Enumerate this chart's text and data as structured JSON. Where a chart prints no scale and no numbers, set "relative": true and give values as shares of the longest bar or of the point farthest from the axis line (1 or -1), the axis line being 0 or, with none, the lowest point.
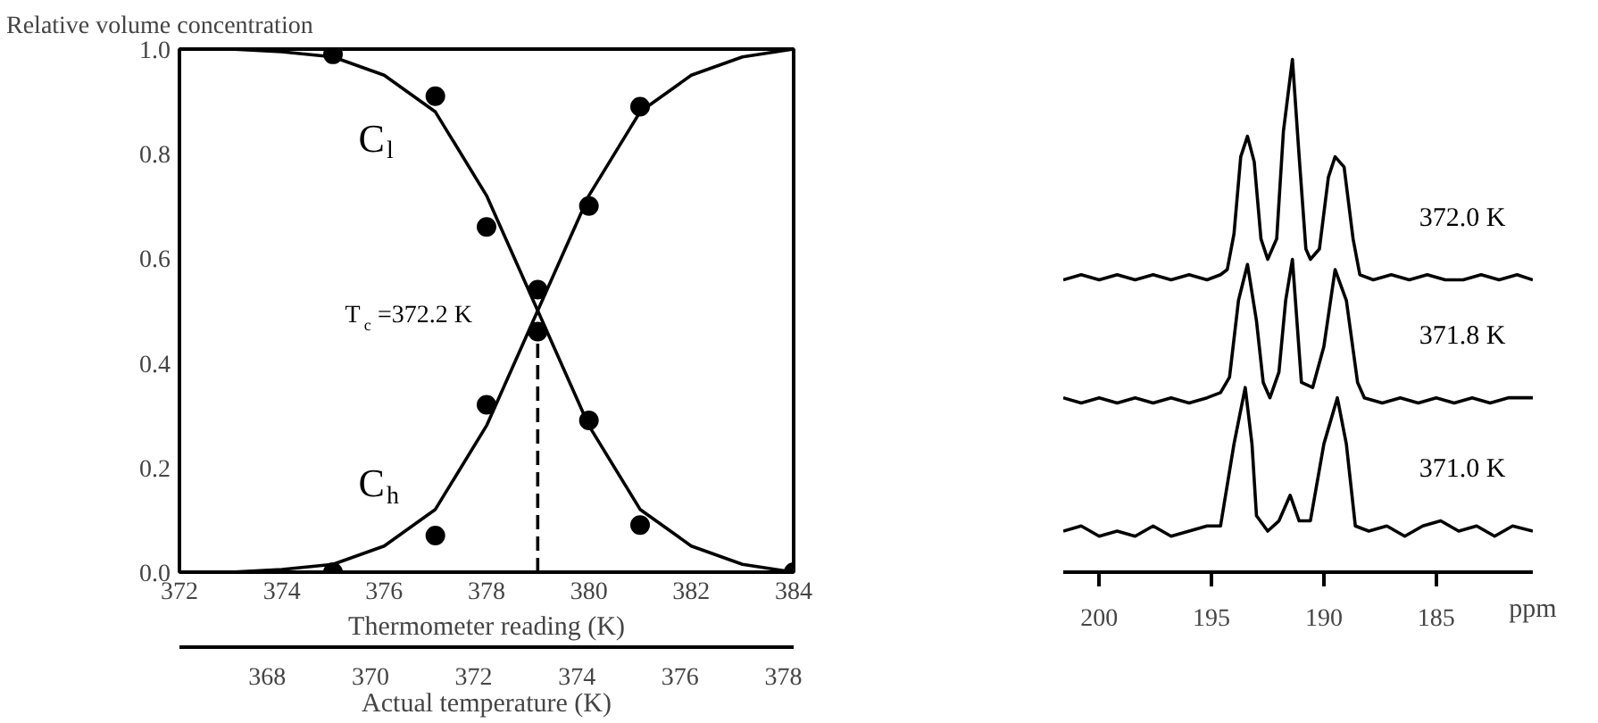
{
  "chart_data": [
    {
      "type": "line",
      "ylabel": "Relative volume concentration",
      "xlabel": "Thermometer reading (K)",
      "x2label": "Actual temperature (K)",
      "xlim": [
        372,
        384
      ],
      "xticks": [
        372,
        374,
        376,
        378,
        380,
        382,
        384
      ],
      "ylim": [
        0,
        1
      ],
      "yticks": [
        {
          "value": 0,
          "label": "0.0"
        },
        0.2,
        0.4,
        0.6,
        0.8,
        {
          "value": 1,
          "label": "1.0"
        }
      ],
      "x2lim": [
        366.3,
        378.2
      ],
      "x2ticks": [
        368,
        370,
        372,
        374,
        376,
        378
      ],
      "grid": false,
      "series": [
        {
          "type": "line",
          "color": "#000000",
          "x": [
            372,
            373,
            374,
            375,
            376,
            377,
            378,
            378.5,
            379,
            379.5,
            380,
            381,
            382,
            383,
            384
          ],
          "values": [
            1.0,
            1.0,
            0.995,
            0.985,
            0.95,
            0.88,
            0.72,
            0.61,
            0.5,
            0.39,
            0.28,
            0.12,
            0.05,
            0.015,
            0.0
          ]
        },
        {
          "type": "line",
          "color": "#000000",
          "x": [
            372,
            373,
            374,
            375,
            376,
            377,
            378,
            378.5,
            379,
            379.5,
            380,
            381,
            382,
            383,
            384
          ],
          "values": [
            0.0,
            0.0,
            0.005,
            0.015,
            0.05,
            0.12,
            0.28,
            0.39,
            0.5,
            0.61,
            0.72,
            0.88,
            0.95,
            0.985,
            1.0
          ]
        },
        {
          "type": "scatter",
          "marker": "circle",
          "color": "#000000",
          "x": [
            375,
            377,
            378,
            379,
            380,
            381,
            384
          ],
          "values": [
            0.99,
            0.91,
            0.66,
            0.46,
            0.29,
            0.09,
            0.0
          ]
        },
        {
          "type": "scatter",
          "marker": "circle",
          "color": "#000000",
          "x": [
            375,
            377,
            378,
            379,
            380,
            381
          ],
          "values": [
            0.0,
            0.07,
            0.32,
            0.54,
            0.7,
            0.89
          ]
        },
        {
          "type": "line",
          "line_style": "dashed",
          "color": "#000000",
          "x": [
            379,
            379
          ],
          "values": [
            0.0,
            0.5
          ]
        }
      ],
      "annotations": [
        "C$_{l}$",
        "C$_{h}$",
        "T$_{c}$=372.2 K"
      ]
    },
    {
      "type": "line",
      "relative": true,
      "xlabel": "ppm",
      "xlim": [
        201.6,
        180.7
      ],
      "xticks": [
        200,
        195,
        190,
        185
      ],
      "grid": false,
      "series": [
        {
          "name": "372.0 K",
          "color": "#000000",
          "x": [
            201.6,
            200.8,
            200,
            199.2,
            198.4,
            197.6,
            196.8,
            196,
            195.2,
            194.6,
            194.3,
            194.0,
            193.7,
            193.4,
            193.1,
            192.8,
            192.5,
            192.1,
            191.8,
            191.4,
            191.1,
            190.8,
            190.6,
            190.2,
            189.8,
            189.5,
            189.1,
            188.7,
            188.4,
            187.8,
            187,
            186.2,
            185.4,
            184.6,
            183.8,
            183,
            182.2,
            181.4,
            180.7
          ],
          "values": [
            0.57,
            0.58,
            0.57,
            0.58,
            0.57,
            0.58,
            0.57,
            0.58,
            0.57,
            0.58,
            0.59,
            0.66,
            0.81,
            0.85,
            0.8,
            0.65,
            0.61,
            0.65,
            0.86,
            1.0,
            0.81,
            0.63,
            0.61,
            0.63,
            0.77,
            0.81,
            0.79,
            0.65,
            0.58,
            0.57,
            0.58,
            0.57,
            0.58,
            0.57,
            0.57,
            0.58,
            0.57,
            0.58,
            0.57
          ]
        },
        {
          "name": "371.8 K",
          "color": "#000000",
          "x": [
            201.6,
            200.8,
            200,
            199.2,
            198.4,
            197.6,
            196.8,
            196,
            195.2,
            194.6,
            194.2,
            193.8,
            193.4,
            193.0,
            192.7,
            192.4,
            192.0,
            191.7,
            191.4,
            191.2,
            191.0,
            190.5,
            190.0,
            189.5,
            189.0,
            188.5,
            188.2,
            187.4,
            186.6,
            185.8,
            185.0,
            184.2,
            183.4,
            182.6,
            181.8,
            180.7
          ],
          "values": [
            0.34,
            0.33,
            0.34,
            0.33,
            0.34,
            0.33,
            0.34,
            0.33,
            0.34,
            0.35,
            0.38,
            0.53,
            0.6,
            0.49,
            0.37,
            0.34,
            0.39,
            0.53,
            0.61,
            0.49,
            0.37,
            0.36,
            0.44,
            0.59,
            0.53,
            0.37,
            0.34,
            0.33,
            0.34,
            0.33,
            0.34,
            0.33,
            0.34,
            0.33,
            0.34,
            0.34
          ]
        },
        {
          "name": "371.0 K",
          "color": "#000000",
          "x": [
            201.6,
            200.8,
            200,
            199.2,
            198.4,
            197.6,
            196.8,
            196,
            195.2,
            194.6,
            194.0,
            193.5,
            193.2,
            193.0,
            192.5,
            192.0,
            191.5,
            191.1,
            190.6,
            190.0,
            189.4,
            189.0,
            188.6,
            188.0,
            187.2,
            186.4,
            185.6,
            184.8,
            184,
            183.2,
            182.4,
            181.6,
            180.7
          ],
          "values": [
            0.08,
            0.09,
            0.07,
            0.08,
            0.07,
            0.09,
            0.07,
            0.08,
            0.09,
            0.09,
            0.25,
            0.36,
            0.25,
            0.11,
            0.08,
            0.1,
            0.15,
            0.1,
            0.1,
            0.25,
            0.34,
            0.25,
            0.09,
            0.08,
            0.09,
            0.07,
            0.09,
            0.1,
            0.08,
            0.09,
            0.07,
            0.09,
            0.08
          ]
        }
      ]
    }
  ]
}
